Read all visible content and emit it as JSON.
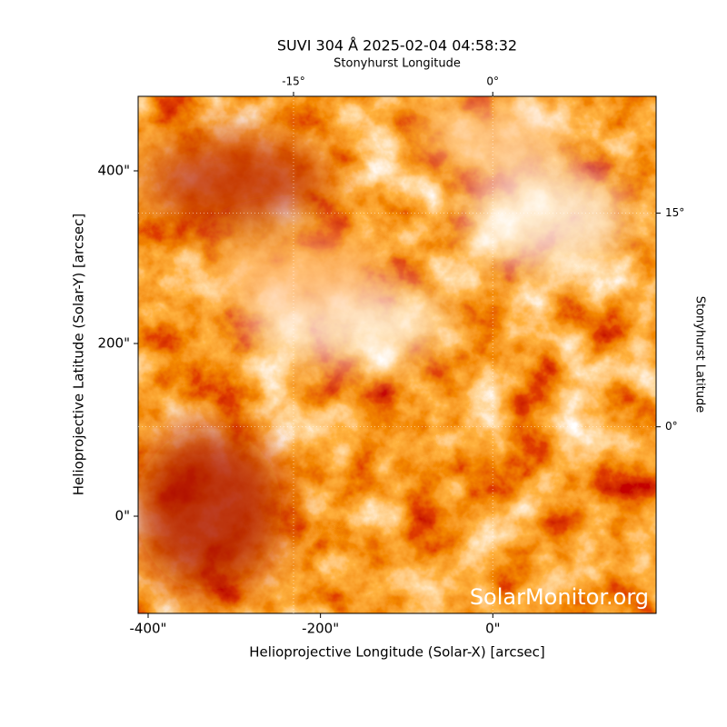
{
  "chart_data": {
    "type": "image",
    "title": "SUVI 304 Å 2025-02-04 04:58:32",
    "xlabel": "Helioprojective Longitude (Solar-X) [arcsec]",
    "ylabel": "Helioprojective Latitude (Solar-Y) [arcsec]",
    "x2label": "Stonyhurst Longitude",
    "y2label": "Stonyhurst Latitude",
    "watermark": "SolarMonitor.org",
    "xlim": [
      -411.6,
      189.5
    ],
    "ylim": [
      -112.6,
      486.3
    ],
    "xticks": [
      {
        "value": -400,
        "label": "-400\""
      },
      {
        "value": -200,
        "label": "-200\""
      },
      {
        "value": 0,
        "label": "0\""
      }
    ],
    "yticks": [
      {
        "value": 0,
        "label": "0\""
      },
      {
        "value": 200,
        "label": "200\""
      },
      {
        "value": 400,
        "label": "400\""
      }
    ],
    "x2lim": [
      -26.7,
      12.3
    ],
    "x2ticks": [
      {
        "value": -15,
        "label": "-15°"
      },
      {
        "value": 0,
        "label": "0°"
      }
    ],
    "y2lim": [
      -13.1,
      23.2
    ],
    "y2ticks": [
      {
        "value": 0,
        "label": "0°"
      },
      {
        "value": 15,
        "label": "15°"
      }
    ],
    "grid": true
  }
}
